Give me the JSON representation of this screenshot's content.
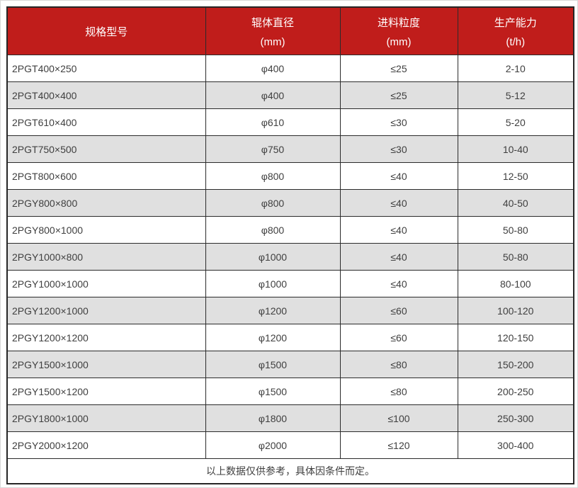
{
  "colors": {
    "header_bg": "#c01d1b",
    "header_text": "#ffffff",
    "row_alt_bg": "#e0e0e0",
    "grid_border": "#2b2b2b",
    "body_text": "#3f3f3f"
  },
  "table": {
    "columns": [
      {
        "title": "规格型号",
        "unit": ""
      },
      {
        "title": "辊体直径",
        "unit": "(mm)"
      },
      {
        "title": "进料粒度",
        "unit": "(mm)"
      },
      {
        "title": "生产能力",
        "unit": "(t/h)"
      }
    ],
    "rows": [
      {
        "model": "2PGT400×250",
        "diameter": "φ400",
        "feed_size": "≤25",
        "capacity": "2-10"
      },
      {
        "model": "2PGT400×400",
        "diameter": "φ400",
        "feed_size": "≤25",
        "capacity": "5-12"
      },
      {
        "model": "2PGT610×400",
        "diameter": "φ610",
        "feed_size": "≤30",
        "capacity": "5-20"
      },
      {
        "model": "2PGT750×500",
        "diameter": "φ750",
        "feed_size": "≤30",
        "capacity": "10-40"
      },
      {
        "model": "2PGT800×600",
        "diameter": "φ800",
        "feed_size": "≤40",
        "capacity": "12-50"
      },
      {
        "model": "2PGY800×800",
        "diameter": "φ800",
        "feed_size": "≤40",
        "capacity": "40-50"
      },
      {
        "model": "2PGY800×1000",
        "diameter": "φ800",
        "feed_size": "≤40",
        "capacity": "50-80"
      },
      {
        "model": "2PGY1000×800",
        "diameter": "φ1000",
        "feed_size": "≤40",
        "capacity": "50-80"
      },
      {
        "model": "2PGY1000×1000",
        "diameter": "φ1000",
        "feed_size": "≤40",
        "capacity": "80-100"
      },
      {
        "model": "2PGY1200×1000",
        "diameter": "φ1200",
        "feed_size": "≤60",
        "capacity": "100-120"
      },
      {
        "model": "2PGY1200×1200",
        "diameter": "φ1200",
        "feed_size": "≤60",
        "capacity": "120-150"
      },
      {
        "model": "2PGY1500×1000",
        "diameter": "φ1500",
        "feed_size": "≤80",
        "capacity": "150-200"
      },
      {
        "model": "2PGY1500×1200",
        "diameter": "φ1500",
        "feed_size": "≤80",
        "capacity": "200-250"
      },
      {
        "model": "2PGY1800×1000",
        "diameter": "φ1800",
        "feed_size": "≤100",
        "capacity": "250-300"
      },
      {
        "model": "2PGY2000×1200",
        "diameter": "φ2000",
        "feed_size": "≤120",
        "capacity": "300-400"
      }
    ],
    "footer_note": "以上数据仅供参考，具体因条件而定。"
  }
}
